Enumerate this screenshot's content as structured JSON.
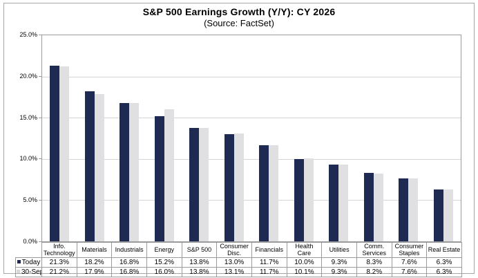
{
  "header": {
    "title": "S&P 500 Earnings Growth (Y/Y): CY 2026",
    "subtitle": "(Source: FactSet)"
  },
  "colors": {
    "today_bar": "#1f2a52",
    "sep30_bar": "#e0e0e2",
    "gridline": "#d5d5d5",
    "plot_border": "#9a9a9a",
    "table_border": "#9a9a9a",
    "frame_border": "#a6a6a6",
    "legend_sep30_swatch": "#d9d9d9"
  },
  "chart_data": {
    "type": "bar",
    "title": "S&P 500 Earnings Growth (Y/Y): CY 2026",
    "subtitle": "(Source: FactSet)",
    "categories": [
      "Info.\nTechnology",
      "Materials",
      "Industrials",
      "Energy",
      "S&P 500",
      "Consumer\nDisc.",
      "Financials",
      "Health Care",
      "Utilities",
      "Comm.\nServices",
      "Consumer\nStaples",
      "Real Estate"
    ],
    "series": [
      {
        "name": "Today",
        "values": [
          21.3,
          18.2,
          16.8,
          15.2,
          13.8,
          13.0,
          11.7,
          10.0,
          9.3,
          8.3,
          7.6,
          6.3
        ]
      },
      {
        "name": "30-Sep",
        "values": [
          21.2,
          17.9,
          16.8,
          16.0,
          13.8,
          13.1,
          11.7,
          10.1,
          9.3,
          8.2,
          7.6,
          6.3
        ]
      }
    ],
    "ylim": [
      0,
      25
    ],
    "yticks": [
      0,
      5,
      10,
      15,
      20,
      25
    ],
    "ytick_labels": [
      "0.0%",
      "5.0%",
      "10.0%",
      "15.0%",
      "20.0%",
      "25.0%"
    ],
    "value_suffix": "%",
    "grid": true,
    "legend_position": "table-left"
  }
}
